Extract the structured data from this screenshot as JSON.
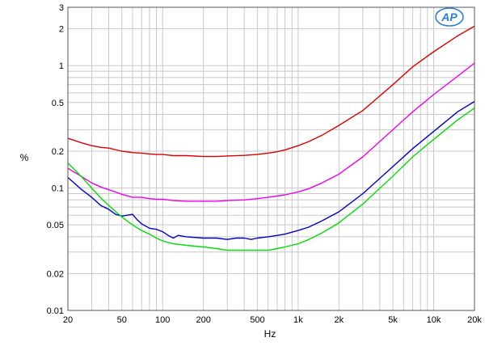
{
  "chart_data": {
    "type": "line",
    "xlabel": "Hz",
    "ylabel": "%",
    "xscale": "log",
    "yscale": "log",
    "xlim": [
      20,
      20000
    ],
    "ylim": [
      0.01,
      3
    ],
    "grid": true,
    "x_ticks": [
      {
        "value": 20,
        "label": "20"
      },
      {
        "value": 50,
        "label": "50"
      },
      {
        "value": 100,
        "label": "100"
      },
      {
        "value": 200,
        "label": "200"
      },
      {
        "value": 500,
        "label": "500"
      },
      {
        "value": 1000,
        "label": "1k"
      },
      {
        "value": 2000,
        "label": "2k"
      },
      {
        "value": 5000,
        "label": "5k"
      },
      {
        "value": 10000,
        "label": "10k"
      },
      {
        "value": 20000,
        "label": "20k"
      }
    ],
    "y_ticks": [
      {
        "value": 0.01,
        "label": "0.01"
      },
      {
        "value": 0.02,
        "label": "0.02"
      },
      {
        "value": 0.05,
        "label": "0.05"
      },
      {
        "value": 0.1,
        "label": "0.1"
      },
      {
        "value": 0.2,
        "label": "0.2"
      },
      {
        "value": 0.5,
        "label": "0.5"
      },
      {
        "value": 1,
        "label": "1"
      },
      {
        "value": 2,
        "label": "2"
      },
      {
        "value": 3,
        "label": "3"
      }
    ],
    "series": [
      {
        "color": "#dd0000",
        "x": [
          20,
          25,
          30,
          35,
          40,
          50,
          60,
          70,
          80,
          90,
          100,
          110,
          120,
          150,
          200,
          250,
          300,
          400,
          500,
          600,
          700,
          800,
          1000,
          1200,
          1500,
          2000,
          3000,
          5000,
          7000,
          10000,
          15000,
          20000
        ],
        "y": [
          0.255,
          0.235,
          0.222,
          0.215,
          0.212,
          0.2,
          0.195,
          0.193,
          0.19,
          0.188,
          0.188,
          0.186,
          0.184,
          0.184,
          0.181,
          0.181,
          0.183,
          0.185,
          0.188,
          0.193,
          0.198,
          0.205,
          0.222,
          0.24,
          0.27,
          0.325,
          0.43,
          0.7,
          0.98,
          1.3,
          1.75,
          2.1
        ]
      },
      {
        "color": "#ee00ee",
        "x": [
          20,
          25,
          30,
          35,
          40,
          50,
          60,
          70,
          80,
          90,
          100,
          110,
          120,
          150,
          200,
          250,
          300,
          400,
          500,
          600,
          700,
          800,
          1000,
          1200,
          1500,
          2000,
          3000,
          5000,
          7000,
          10000,
          15000,
          20000
        ],
        "y": [
          0.145,
          0.125,
          0.11,
          0.102,
          0.097,
          0.089,
          0.084,
          0.084,
          0.082,
          0.081,
          0.081,
          0.08,
          0.079,
          0.078,
          0.078,
          0.078,
          0.079,
          0.08,
          0.082,
          0.084,
          0.086,
          0.088,
          0.093,
          0.099,
          0.11,
          0.13,
          0.18,
          0.3,
          0.42,
          0.58,
          0.82,
          1.05
        ]
      },
      {
        "color": "#0000cc",
        "x": [
          20,
          25,
          30,
          35,
          40,
          45,
          50,
          55,
          60,
          65,
          70,
          80,
          90,
          100,
          110,
          120,
          130,
          150,
          200,
          250,
          300,
          350,
          400,
          450,
          500,
          600,
          700,
          800,
          1000,
          1200,
          1500,
          2000,
          3000,
          5000,
          7000,
          10000,
          15000,
          20000
        ],
        "y": [
          0.122,
          0.098,
          0.084,
          0.072,
          0.067,
          0.061,
          0.059,
          0.06,
          0.061,
          0.055,
          0.051,
          0.047,
          0.046,
          0.044,
          0.041,
          0.039,
          0.041,
          0.04,
          0.039,
          0.039,
          0.038,
          0.039,
          0.039,
          0.038,
          0.039,
          0.04,
          0.041,
          0.042,
          0.045,
          0.048,
          0.054,
          0.064,
          0.09,
          0.15,
          0.21,
          0.29,
          0.42,
          0.51
        ]
      },
      {
        "color": "#00dd00",
        "x": [
          20,
          25,
          30,
          35,
          40,
          50,
          60,
          70,
          80,
          90,
          100,
          120,
          150,
          200,
          250,
          300,
          350,
          400,
          500,
          600,
          700,
          800,
          1000,
          1200,
          1500,
          2000,
          3000,
          5000,
          7000,
          10000,
          15000,
          20000
        ],
        "y": [
          0.16,
          0.125,
          0.1,
          0.083,
          0.072,
          0.058,
          0.05,
          0.045,
          0.042,
          0.039,
          0.037,
          0.035,
          0.034,
          0.033,
          0.032,
          0.031,
          0.031,
          0.031,
          0.031,
          0.031,
          0.032,
          0.033,
          0.035,
          0.038,
          0.043,
          0.052,
          0.074,
          0.125,
          0.18,
          0.25,
          0.36,
          0.45
        ]
      }
    ]
  },
  "logo": {
    "text": "AP",
    "color": "#2a7fd4"
  }
}
